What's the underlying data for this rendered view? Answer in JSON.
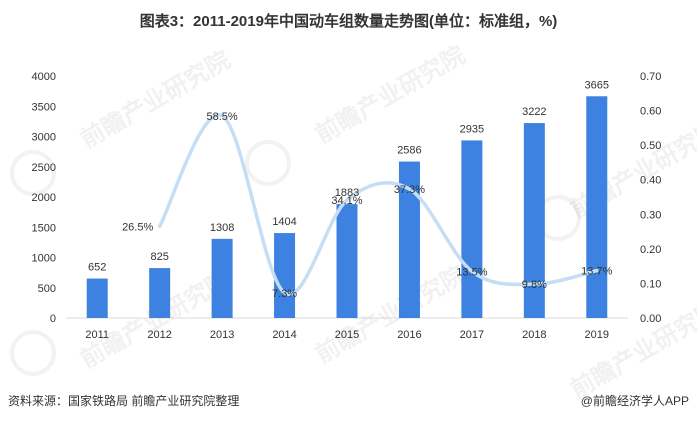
{
  "title": "图表3：2011-2019年中国动车组数量走势图(单位：标准组，%)",
  "source": "资料来源：国家铁路局  前瞻产业研究院整理",
  "brand": "@前瞻经济学人APP",
  "watermark_text": "前瞻产业研究院",
  "colors": {
    "bar": "#3d82e0",
    "line": "#c5def6"
  },
  "chart_data": {
    "type": "bar",
    "categories": [
      "2011",
      "2012",
      "2013",
      "2014",
      "2015",
      "2016",
      "2017",
      "2018",
      "2019"
    ],
    "series": [
      {
        "type": "bar",
        "axis": "left",
        "values": [
          652,
          825,
          1308,
          1404,
          1883,
          2586,
          2935,
          3222,
          3665
        ]
      },
      {
        "type": "line",
        "axis": "right",
        "values": [
          null,
          0.265,
          0.585,
          0.073,
          0.341,
          0.373,
          0.135,
          0.098,
          0.137
        ],
        "labels": [
          "",
          "26.5%",
          "58.5%",
          "7.3%",
          "34.1%",
          "37.3%",
          "13.5%",
          "9.8%",
          "13.7%"
        ]
      }
    ],
    "ylim_left": [
      0,
      4000
    ],
    "ylim_right": [
      0,
      0.7
    ],
    "yticks_left": [
      "0",
      "500",
      "1000",
      "1500",
      "2000",
      "2500",
      "3000",
      "3500",
      "4000"
    ],
    "yticks_right": [
      "0.00",
      "0.10",
      "0.20",
      "0.30",
      "0.40",
      "0.50",
      "0.60",
      "0.70"
    ]
  }
}
